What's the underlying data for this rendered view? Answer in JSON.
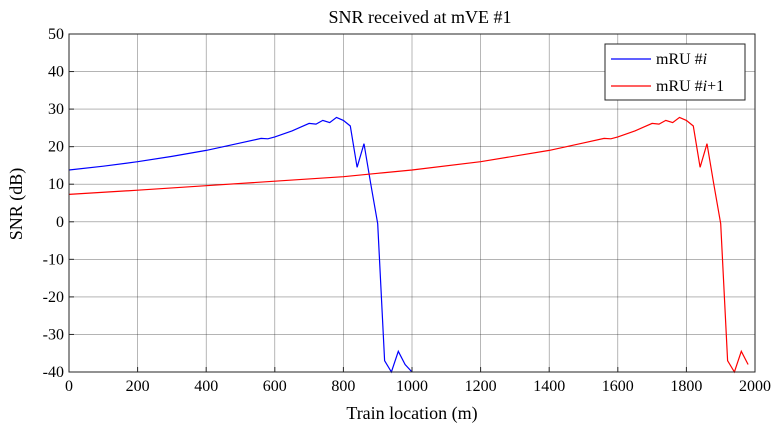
{
  "chart_data": {
    "type": "line",
    "title": "SNR received at mVE #1",
    "xlabel": "Train location (m)",
    "ylabel": "SNR (dB)",
    "xlim": [
      0,
      2000
    ],
    "ylim": [
      -40,
      50
    ],
    "xticks": [
      0,
      200,
      400,
      600,
      800,
      1000,
      1200,
      1400,
      1600,
      1800,
      2000
    ],
    "yticks": [
      -40,
      -30,
      -20,
      -10,
      0,
      10,
      20,
      30,
      40,
      50
    ],
    "grid": true,
    "legend_position": "top-right",
    "series": [
      {
        "name": "mRU #i",
        "name_prefix": "mRU #",
        "name_italic": "i",
        "name_suffix": "",
        "color": "#0000ff",
        "x": [
          0,
          100,
          200,
          300,
          400,
          500,
          560,
          580,
          600,
          650,
          700,
          720,
          740,
          760,
          780,
          800,
          820,
          840,
          860,
          880,
          900,
          920,
          940,
          960,
          980,
          1000
        ],
        "y": [
          13.8,
          14.8,
          16.0,
          17.4,
          19.0,
          21.0,
          22.2,
          22.1,
          22.6,
          24.2,
          26.2,
          26.0,
          27.0,
          26.4,
          27.8,
          27.0,
          25.5,
          14.5,
          20.8,
          10.0,
          -0.5,
          -37.0,
          -40.0,
          -34.5,
          -38.0,
          -40.0
        ]
      },
      {
        "name": "mRU #i+1",
        "name_prefix": "mRU #",
        "name_italic": "i",
        "name_suffix": "+1",
        "color": "#ff0000",
        "x": [
          0,
          200,
          400,
          600,
          800,
          900,
          1000,
          1200,
          1400,
          1500,
          1560,
          1580,
          1600,
          1650,
          1700,
          1720,
          1740,
          1760,
          1780,
          1800,
          1820,
          1840,
          1860,
          1880,
          1900,
          1920,
          1940,
          1960,
          1980
        ],
        "y": [
          7.3,
          8.4,
          9.6,
          10.8,
          12.0,
          12.9,
          13.8,
          16.0,
          19.0,
          21.0,
          22.2,
          22.1,
          22.6,
          24.2,
          26.2,
          26.0,
          27.0,
          26.4,
          27.8,
          27.0,
          25.5,
          14.5,
          20.8,
          10.0,
          -0.5,
          -37.0,
          -40.0,
          -34.5,
          -38.0
        ]
      }
    ]
  }
}
